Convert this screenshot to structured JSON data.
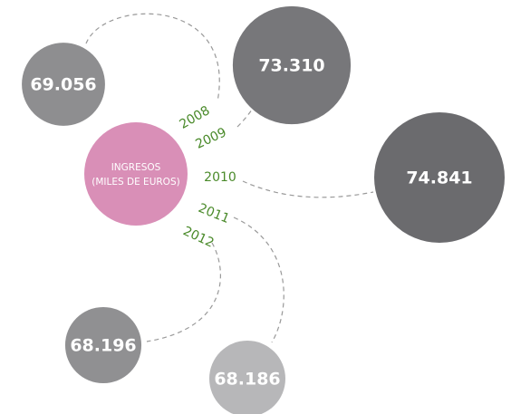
{
  "chart_data": {
    "type": "bubble",
    "center_label": [
      "INGRESOS",
      "(MILES DE EUROS)"
    ],
    "center_color": "#d98fb7",
    "categories": [
      "2008",
      "2009",
      "2010",
      "2011",
      "2012"
    ],
    "values": [
      69056,
      73310,
      74841,
      68186,
      68196
    ],
    "value_labels": [
      "69.056",
      "73.310",
      "74.841",
      "68.186",
      "68.196"
    ],
    "colors": [
      "#8e8e90",
      "#77777a",
      "#6b6b6e",
      "#b7b7b9",
      "#909092"
    ],
    "year_color": "#4a8a2a"
  }
}
